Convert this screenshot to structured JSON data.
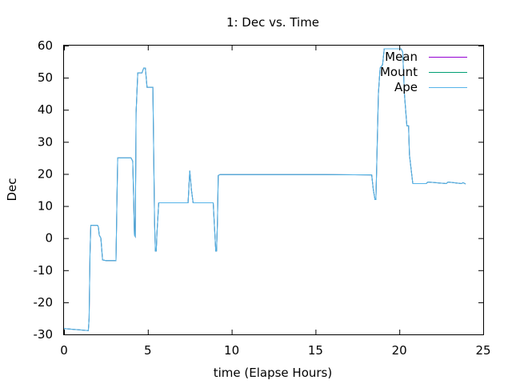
{
  "chart_data": {
    "type": "line",
    "title": "1: Dec vs. Time",
    "xlabel": "time (Elapse Hours)",
    "ylabel": "Dec",
    "xlim": [
      0,
      25
    ],
    "ylim": [
      -30,
      60
    ],
    "xticks": [
      0,
      5,
      10,
      15,
      20,
      25
    ],
    "yticks": [
      -30,
      -20,
      -10,
      0,
      10,
      20,
      30,
      40,
      50,
      60
    ],
    "grid": false,
    "legend_position": "top-right",
    "series": [
      {
        "name": "Mean",
        "color": "#9400d3",
        "x": [
          0,
          1.45,
          1.5,
          1.55,
          1.6,
          2.0,
          2.05,
          2.1,
          2.2,
          2.3,
          2.5,
          2.9,
          3.1,
          3.15,
          3.2,
          3.6,
          4.0,
          4.1,
          4.15,
          4.2,
          4.25,
          4.3,
          4.4,
          4.5,
          4.65,
          4.75,
          4.85,
          4.95,
          5.05,
          5.1,
          5.3,
          5.4,
          5.45,
          5.5,
          5.55,
          5.65,
          6.5,
          7.4,
          7.5,
          7.6,
          7.7,
          8.9,
          9.05,
          9.1,
          9.15,
          9.2,
          9.3,
          15.5,
          18.2,
          18.35,
          18.45,
          18.55,
          18.6,
          18.75,
          18.85,
          19.0,
          19.1,
          20.0,
          20.1,
          20.2,
          20.3,
          20.45,
          20.55,
          20.6,
          20.8,
          21.6,
          21.7,
          22.8,
          22.9,
          23.7,
          23.8,
          23.95
        ],
        "y": [
          -28.2,
          -28.8,
          -25,
          -5,
          4,
          4,
          3.5,
          1,
          0,
          -6.8,
          -7,
          -7,
          -7,
          9,
          25,
          25,
          25,
          24,
          13,
          1,
          0.5,
          39,
          51.5,
          51.5,
          51.5,
          53,
          53,
          47,
          47,
          47,
          47,
          5,
          -4,
          -4,
          2,
          11,
          11,
          11,
          21,
          15,
          11,
          11,
          -4,
          -4,
          5,
          19.5,
          19.8,
          19.8,
          19.7,
          19.7,
          15,
          12,
          12,
          45,
          53,
          54,
          59,
          59,
          59,
          58,
          45,
          35,
          35,
          26,
          17,
          17,
          17.5,
          17,
          17.5,
          17,
          17.3,
          16.9
        ],
        "x_label": "",
        "y_label": ""
      },
      {
        "name": "Mount",
        "color": "#009e73",
        "x": [
          0,
          1.45,
          1.5,
          1.55,
          1.6,
          2.0,
          2.05,
          2.1,
          2.2,
          2.3,
          2.5,
          2.9,
          3.1,
          3.15,
          3.2,
          3.6,
          4.0,
          4.1,
          4.15,
          4.2,
          4.25,
          4.3,
          4.4,
          4.5,
          4.65,
          4.75,
          4.85,
          4.95,
          5.05,
          5.1,
          5.3,
          5.4,
          5.45,
          5.5,
          5.55,
          5.65,
          6.5,
          7.4,
          7.5,
          7.6,
          7.7,
          8.9,
          9.05,
          9.1,
          9.15,
          9.2,
          9.3,
          15.5,
          18.2,
          18.35,
          18.45,
          18.55,
          18.6,
          18.75,
          18.85,
          19.0,
          19.1,
          20.0,
          20.1,
          20.2,
          20.3,
          20.45,
          20.55,
          20.6,
          20.8,
          21.6,
          21.7,
          22.8,
          22.9,
          23.7,
          23.8,
          23.95
        ],
        "y": [
          -28.2,
          -28.8,
          -25,
          -5,
          4,
          4,
          3.5,
          1,
          0,
          -6.8,
          -7,
          -7,
          -7,
          9,
          25,
          25,
          25,
          24,
          13,
          1,
          0.5,
          39,
          51.5,
          51.5,
          51.5,
          53,
          53,
          47,
          47,
          47,
          47,
          5,
          -4,
          -4,
          2,
          11,
          11,
          11,
          21,
          15,
          11,
          11,
          -4,
          -4,
          5,
          19.5,
          19.8,
          19.8,
          19.7,
          19.7,
          15,
          12,
          12,
          45,
          53,
          54,
          59,
          59,
          59,
          58,
          45,
          35,
          35,
          26,
          17,
          17,
          17.5,
          17,
          17.5,
          17,
          17.3,
          16.9
        ]
      },
      {
        "name": "Ape",
        "color": "#56b4e9",
        "x": [
          0,
          1.45,
          1.5,
          1.55,
          1.6,
          2.0,
          2.05,
          2.1,
          2.2,
          2.3,
          2.5,
          2.9,
          3.1,
          3.15,
          3.2,
          3.6,
          4.0,
          4.1,
          4.15,
          4.2,
          4.25,
          4.3,
          4.4,
          4.5,
          4.65,
          4.75,
          4.85,
          4.95,
          5.05,
          5.1,
          5.3,
          5.4,
          5.45,
          5.5,
          5.55,
          5.65,
          6.5,
          7.4,
          7.5,
          7.6,
          7.7,
          8.9,
          9.05,
          9.1,
          9.15,
          9.2,
          9.3,
          15.5,
          18.2,
          18.35,
          18.45,
          18.55,
          18.6,
          18.75,
          18.85,
          19.0,
          19.1,
          20.0,
          20.1,
          20.2,
          20.3,
          20.45,
          20.55,
          20.6,
          20.8,
          21.6,
          21.7,
          22.8,
          22.9,
          23.7,
          23.8,
          23.95
        ],
        "y": [
          -28.2,
          -28.8,
          -25,
          -5,
          4,
          4,
          3.5,
          1,
          0,
          -6.8,
          -7,
          -7,
          -7,
          9,
          25,
          25,
          25,
          24,
          13,
          1,
          0.5,
          39,
          51.5,
          51.5,
          51.5,
          53,
          53,
          47,
          47,
          47,
          47,
          5,
          -4,
          -4,
          2,
          11,
          11,
          11,
          21,
          15,
          11,
          11,
          -4,
          -4,
          5,
          19.5,
          19.8,
          19.8,
          19.7,
          19.7,
          15,
          12,
          12,
          45,
          53,
          54,
          59,
          59,
          59,
          58,
          45,
          35,
          35,
          26,
          17,
          17,
          17.5,
          17,
          17.5,
          17,
          17.3,
          16.9
        ]
      }
    ]
  }
}
